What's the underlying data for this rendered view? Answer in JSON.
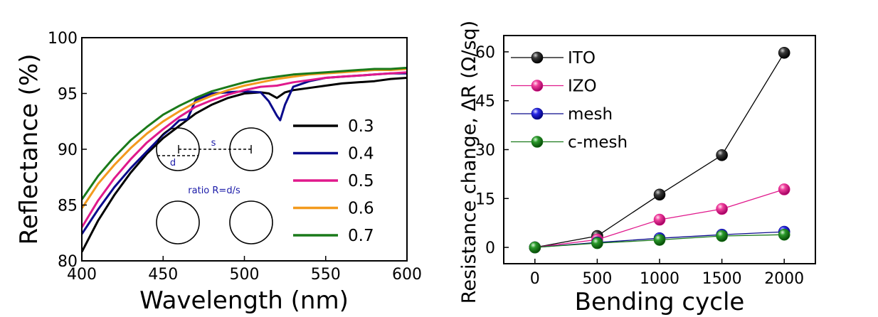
{
  "chart_data": [
    {
      "type": "line",
      "xlabel": "Wavelength (nm)",
      "ylabel": "Reflectance (%)",
      "xlim": [
        400,
        600
      ],
      "ylim": [
        80,
        100
      ],
      "xticks": [
        400,
        450,
        500,
        550,
        600
      ],
      "yticks": [
        80,
        85,
        90,
        95,
        100
      ],
      "legend_position": "lower-right",
      "inset": {
        "label_s": "s",
        "label_d": "d",
        "caption": "ratio R=d/s"
      },
      "series": [
        {
          "name": "0.3",
          "color": "#000000",
          "x": [
            400,
            410,
            420,
            430,
            440,
            450,
            460,
            470,
            480,
            490,
            500,
            510,
            515,
            520,
            525,
            530,
            540,
            550,
            560,
            570,
            580,
            590,
            600
          ],
          "y": [
            80.8,
            83.6,
            85.9,
            87.9,
            89.6,
            91.0,
            92.1,
            93.2,
            94.0,
            94.6,
            95.0,
            95.1,
            95.0,
            94.6,
            95.1,
            95.3,
            95.5,
            95.7,
            95.9,
            96.0,
            96.1,
            96.3,
            96.4
          ]
        },
        {
          "name": "0.4",
          "color": "#0a0a8c",
          "x": [
            400,
            410,
            420,
            430,
            440,
            450,
            455,
            460,
            465,
            470,
            480,
            490,
            500,
            510,
            515,
            520,
            522,
            525,
            530,
            540,
            550,
            560,
            570,
            580,
            590,
            600
          ],
          "y": [
            82.4,
            84.6,
            86.6,
            88.3,
            89.8,
            91.3,
            91.9,
            92.6,
            92.7,
            94.4,
            95.0,
            95.1,
            95.2,
            95.1,
            94.3,
            93.0,
            92.6,
            94.0,
            95.6,
            96.1,
            96.4,
            96.5,
            96.6,
            96.7,
            96.8,
            96.8
          ]
        },
        {
          "name": "0.5",
          "color": "#e0198c",
          "x": [
            400,
            410,
            420,
            430,
            440,
            450,
            460,
            470,
            480,
            490,
            500,
            510,
            520,
            530,
            540,
            550,
            560,
            570,
            580,
            590,
            600
          ],
          "y": [
            83.0,
            85.4,
            87.4,
            89.1,
            90.6,
            91.8,
            92.9,
            93.8,
            94.4,
            94.9,
            95.3,
            95.6,
            95.7,
            96.0,
            96.2,
            96.4,
            96.5,
            96.6,
            96.7,
            96.8,
            96.9
          ]
        },
        {
          "name": "0.6",
          "color": "#f39a1e",
          "x": [
            400,
            410,
            420,
            430,
            440,
            450,
            460,
            470,
            480,
            490,
            500,
            510,
            520,
            530,
            540,
            550,
            560,
            570,
            580,
            590,
            600
          ],
          "y": [
            84.7,
            86.9,
            88.6,
            90.1,
            91.4,
            92.5,
            93.4,
            94.2,
            94.8,
            95.3,
            95.7,
            96.0,
            96.3,
            96.5,
            96.7,
            96.8,
            96.9,
            97.0,
            97.1,
            97.1,
            97.2
          ]
        },
        {
          "name": "0.7",
          "color": "#1a7a1a",
          "x": [
            400,
            410,
            420,
            430,
            440,
            450,
            460,
            470,
            480,
            490,
            500,
            510,
            520,
            530,
            540,
            550,
            560,
            570,
            580,
            590,
            600
          ],
          "y": [
            85.5,
            87.6,
            89.3,
            90.8,
            92.0,
            93.1,
            93.9,
            94.6,
            95.2,
            95.6,
            96.0,
            96.3,
            96.5,
            96.7,
            96.8,
            96.9,
            97.0,
            97.1,
            97.2,
            97.2,
            97.3
          ]
        }
      ]
    },
    {
      "type": "line",
      "xlabel": "Bending cycle",
      "ylabel": "Resistance change, ΔR (Ω/sq)",
      "xlim": [
        -250,
        2250
      ],
      "ylim": [
        -5,
        65
      ],
      "xticks": [
        0,
        500,
        1000,
        1500,
        2000
      ],
      "yticks": [
        0,
        15,
        30,
        45,
        60
      ],
      "legend_position": "top-left",
      "categories": [
        0,
        500,
        1000,
        1500,
        2000
      ],
      "series": [
        {
          "name": "ITO",
          "color": "#000000",
          "marker_fill": "#1a1a1a",
          "values": [
            0,
            3.5,
            16.2,
            28.3,
            59.7
          ]
        },
        {
          "name": "IZO",
          "color": "#e0198c",
          "marker_fill": "#f0409c",
          "values": [
            0,
            2.4,
            8.5,
            11.8,
            17.8
          ]
        },
        {
          "name": "mesh",
          "color": "#0a0a8c",
          "marker_fill": "#2a2ae8",
          "values": [
            0,
            1.5,
            2.8,
            3.9,
            4.8
          ]
        },
        {
          "name": "c-mesh",
          "color": "#1a7a1a",
          "marker_fill": "#2a9a2a",
          "values": [
            0,
            1.3,
            2.3,
            3.5,
            3.9
          ]
        }
      ]
    }
  ]
}
